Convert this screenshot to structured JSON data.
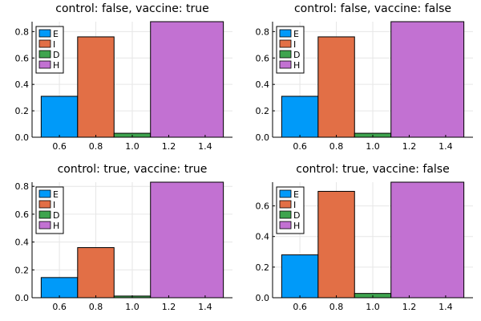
{
  "chart_data": [
    {
      "type": "bar",
      "title": "control: false, vaccine: true",
      "xlabel": "",
      "ylabel": "",
      "xlim": [
        0.45,
        1.55
      ],
      "ylim": [
        0,
        0.875
      ],
      "xticks": [
        0.6,
        0.8,
        1.0,
        1.2,
        1.4
      ],
      "xtick_labels": [
        "0.6",
        "0.8",
        "1.0",
        "1.2",
        "1.4"
      ],
      "yticks": [
        0,
        0.2,
        0.4,
        0.6,
        0.8
      ],
      "ytick_labels": [
        "0.0",
        "0.2",
        "0.4",
        "0.6",
        "0.8"
      ],
      "grid": true,
      "legend": "top-left",
      "series": [
        {
          "name": "E",
          "color": "#009af9",
          "x0": 0.5,
          "x1": 0.7,
          "value": 0.31
        },
        {
          "name": "I",
          "color": "#e26f46",
          "x0": 0.7,
          "x1": 0.9,
          "value": 0.76
        },
        {
          "name": "D",
          "color": "#3ea44e",
          "x0": 0.9,
          "x1": 1.1,
          "value": 0.03
        },
        {
          "name": "H",
          "color": "#c271d2",
          "x0": 1.1,
          "x1": 1.5,
          "value": 0.875
        }
      ]
    },
    {
      "type": "bar",
      "title": "control: false, vaccine: false",
      "xlabel": "",
      "ylabel": "",
      "xlim": [
        0.45,
        1.55
      ],
      "ylim": [
        0,
        0.875
      ],
      "xticks": [
        0.6,
        0.8,
        1.0,
        1.2,
        1.4
      ],
      "xtick_labels": [
        "0.6",
        "0.8",
        "1.0",
        "1.2",
        "1.4"
      ],
      "yticks": [
        0,
        0.2,
        0.4,
        0.6,
        0.8
      ],
      "ytick_labels": [
        "0.0",
        "0.2",
        "0.4",
        "0.6",
        "0.8"
      ],
      "grid": true,
      "legend": "top-left",
      "series": [
        {
          "name": "E",
          "color": "#009af9",
          "x0": 0.5,
          "x1": 0.7,
          "value": 0.31
        },
        {
          "name": "I",
          "color": "#e26f46",
          "x0": 0.7,
          "x1": 0.9,
          "value": 0.76
        },
        {
          "name": "D",
          "color": "#3ea44e",
          "x0": 0.9,
          "x1": 1.1,
          "value": 0.03
        },
        {
          "name": "H",
          "color": "#c271d2",
          "x0": 1.1,
          "x1": 1.5,
          "value": 0.875
        }
      ]
    },
    {
      "type": "bar",
      "title": "control: true, vaccine: true",
      "xlabel": "",
      "ylabel": "",
      "xlim": [
        0.45,
        1.55
      ],
      "ylim": [
        0,
        0.83
      ],
      "xticks": [
        0.6,
        0.8,
        1.0,
        1.2,
        1.4
      ],
      "xtick_labels": [
        "0.6",
        "0.8",
        "1.0",
        "1.2",
        "1.4"
      ],
      "yticks": [
        0,
        0.2,
        0.4,
        0.6,
        0.8
      ],
      "ytick_labels": [
        "0.0",
        "0.2",
        "0.4",
        "0.6",
        "0.8"
      ],
      "grid": true,
      "legend": "top-left",
      "series": [
        {
          "name": "E",
          "color": "#009af9",
          "x0": 0.5,
          "x1": 0.7,
          "value": 0.145
        },
        {
          "name": "I",
          "color": "#e26f46",
          "x0": 0.7,
          "x1": 0.9,
          "value": 0.36
        },
        {
          "name": "D",
          "color": "#3ea44e",
          "x0": 0.9,
          "x1": 1.1,
          "value": 0.012
        },
        {
          "name": "H",
          "color": "#c271d2",
          "x0": 1.1,
          "x1": 1.5,
          "value": 0.83
        }
      ]
    },
    {
      "type": "bar",
      "title": "control: true, vaccine: false",
      "xlabel": "",
      "ylabel": "",
      "xlim": [
        0.45,
        1.55
      ],
      "ylim": [
        0,
        0.755
      ],
      "xticks": [
        0.6,
        0.8,
        1.0,
        1.2,
        1.4
      ],
      "xtick_labels": [
        "0.6",
        "0.8",
        "1.0",
        "1.2",
        "1.4"
      ],
      "yticks": [
        0,
        0.2,
        0.4,
        0.6
      ],
      "ytick_labels": [
        "0.0",
        "0.2",
        "0.4",
        "0.6"
      ],
      "grid": true,
      "legend": "top-left",
      "series": [
        {
          "name": "E",
          "color": "#009af9",
          "x0": 0.5,
          "x1": 0.7,
          "value": 0.28
        },
        {
          "name": "I",
          "color": "#e26f46",
          "x0": 0.7,
          "x1": 0.9,
          "value": 0.695
        },
        {
          "name": "D",
          "color": "#3ea44e",
          "x0": 0.9,
          "x1": 1.1,
          "value": 0.028
        },
        {
          "name": "H",
          "color": "#c271d2",
          "x0": 1.1,
          "x1": 1.5,
          "value": 0.755
        }
      ]
    }
  ]
}
